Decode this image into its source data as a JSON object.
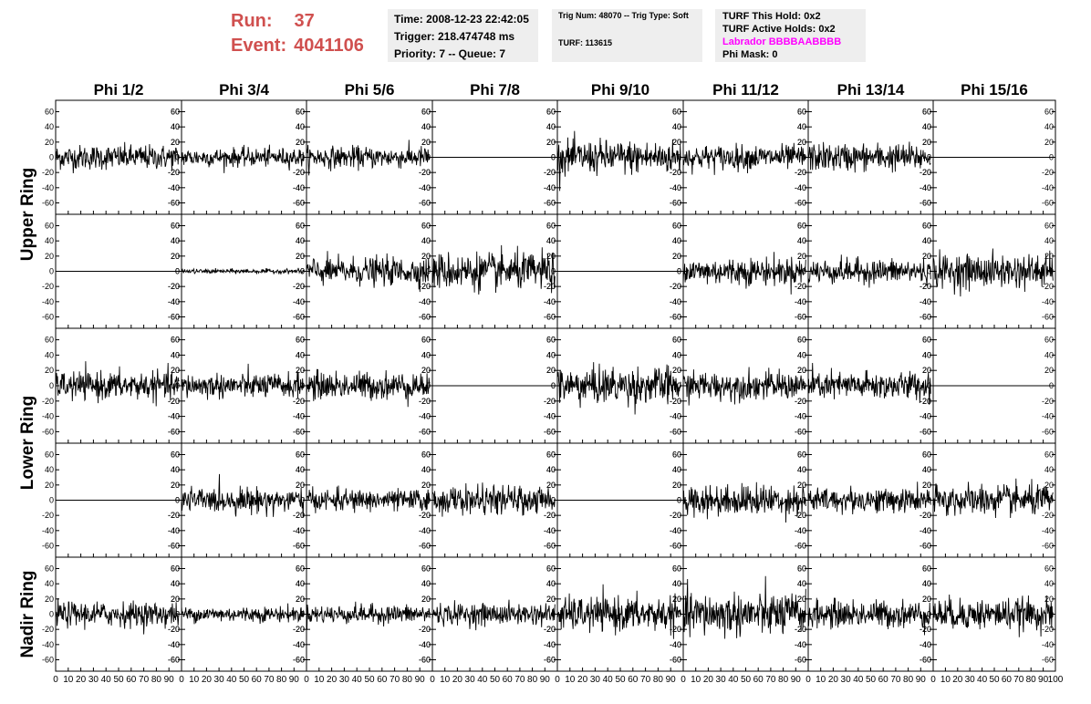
{
  "header": {
    "run_label": "Run:",
    "run_value": "37",
    "event_label": "Event:",
    "event_value": "4041106",
    "time": "Time: 2008-12-23 22:42:05",
    "trigger": "Trigger: 218.474748 ms",
    "priority": "Priority: 7 -- Queue: 7",
    "trig_num": "Trig Num: 48070 -- Trig Type: Soft",
    "turf": "TURF: 113615",
    "turf_hold": "TURF This Hold: 0x2",
    "turf_active": "TURF Active Holds: 0x2",
    "labrador": "Labrador BBBBAABBBB",
    "phi_mask": "Phi Mask: 0"
  },
  "colors": {
    "header_red": "#d0504f",
    "magenta": "#ff00ff",
    "info_box_bg": "#eeeeee",
    "trace": "#000000"
  },
  "chart_data": {
    "type": "line",
    "columns": [
      "Phi 1/2",
      "Phi 3/4",
      "Phi 5/6",
      "Phi 7/8",
      "Phi 9/10",
      "Phi 11/12",
      "Phi 13/14",
      "Phi 15/16"
    ],
    "row_groups": [
      {
        "label": "Upper Ring",
        "rows": [
          0,
          1
        ]
      },
      {
        "label": "Lower Ring",
        "rows": [
          2,
          3
        ]
      },
      {
        "label": "Nadir Ring",
        "rows": [
          4
        ]
      }
    ],
    "ylim": [
      -75,
      75
    ],
    "xlim": [
      0,
      100
    ],
    "y_ticks": [
      -60,
      -40,
      -20,
      0,
      20,
      40,
      60
    ],
    "y_tick_labels": [
      "-60",
      "-40",
      "-20",
      "0",
      "20",
      "40",
      "60"
    ],
    "x_tick_labels": [
      "0",
      "10",
      "20",
      "30",
      "40",
      "50",
      "60",
      "70",
      "80",
      "90",
      "100"
    ],
    "samples_per_trace": 260,
    "amplitude_rms": [
      [
        8,
        6,
        7,
        0,
        11,
        8,
        9,
        0
      ],
      [
        0,
        1.5,
        9,
        12,
        0,
        9,
        8,
        11
      ],
      [
        9,
        8,
        9,
        0,
        12,
        9,
        9,
        0
      ],
      [
        0,
        8,
        7,
        9,
        0,
        10,
        8,
        10
      ],
      [
        8,
        5,
        6,
        7,
        11,
        14,
        9,
        10
      ]
    ]
  }
}
